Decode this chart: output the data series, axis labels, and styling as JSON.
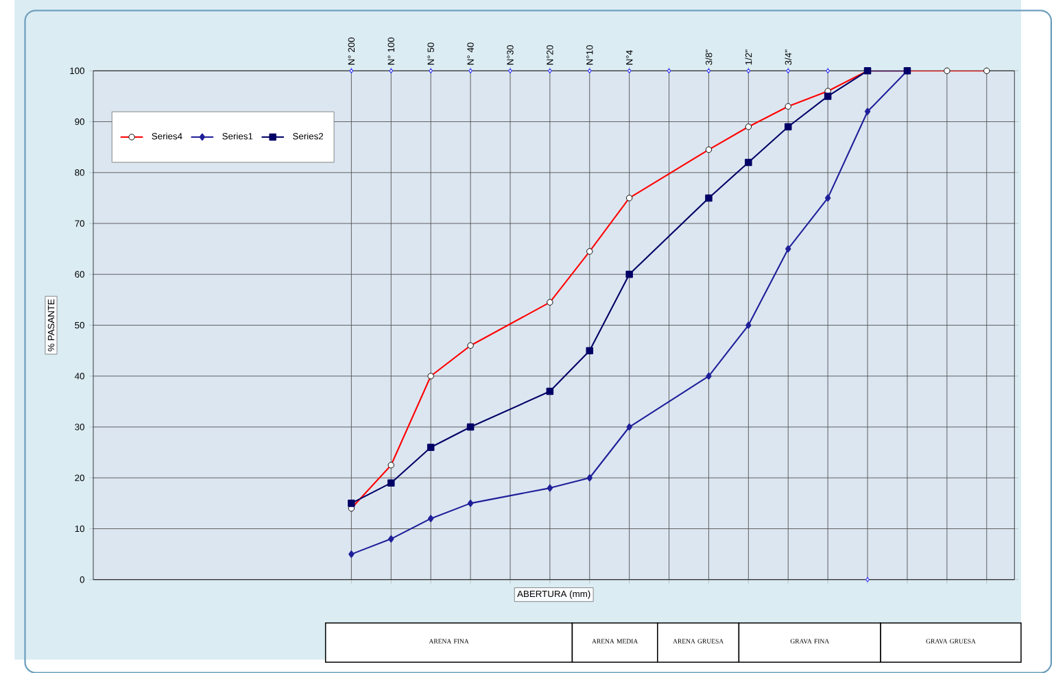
{
  "chart_data": {
    "type": "line",
    "xlabel": "ABERTURA (mm)",
    "ylabel": "% PASANTE",
    "grid": true,
    "legend": "top left",
    "categories": [
      "N° 200",
      "N° 100",
      "N° 50",
      "N° 40",
      "N°30",
      "N°20",
      "N°10",
      "N°4",
      null,
      "3/8\"",
      "1/2\"",
      "3/4\"",
      null,
      null,
      null,
      null,
      null
    ],
    "ylim": [
      0,
      100
    ],
    "yticks": [
      0,
      10,
      20,
      30,
      40,
      50,
      60,
      70,
      80,
      90,
      100
    ],
    "series": [
      {
        "name": "Series4",
        "color": "#ff0000",
        "marker": "circle",
        "values": [
          14,
          22.5,
          40,
          46,
          null,
          54.5,
          64.5,
          75,
          null,
          84.5,
          89,
          93,
          96,
          100,
          null,
          100,
          100
        ]
      },
      {
        "name": "Series1",
        "color": "#1f1f99",
        "marker": "diamond",
        "values": [
          5,
          8,
          12,
          15,
          null,
          18,
          20,
          30,
          null,
          40,
          50,
          65,
          75,
          92,
          100,
          null,
          null
        ]
      },
      {
        "name": "Series2",
        "color": "#000066",
        "marker": "square",
        "values": [
          15,
          19,
          26,
          30,
          null,
          37,
          45,
          60,
          null,
          75,
          82,
          89,
          95,
          100,
          100,
          null,
          null
        ]
      },
      {
        "type": "scatter",
        "color": "#3333ff",
        "marker": "diamond",
        "values": [
          100,
          100,
          100,
          100,
          100,
          100,
          100,
          100,
          100,
          100,
          100,
          100,
          100,
          0,
          null,
          null,
          null
        ]
      }
    ],
    "annotations": [
      "ARENA FINA",
      "ARENA MEDIA",
      "ARENA GRUESA",
      "GRAVA FINA",
      "GRAVA GRUESA"
    ]
  }
}
